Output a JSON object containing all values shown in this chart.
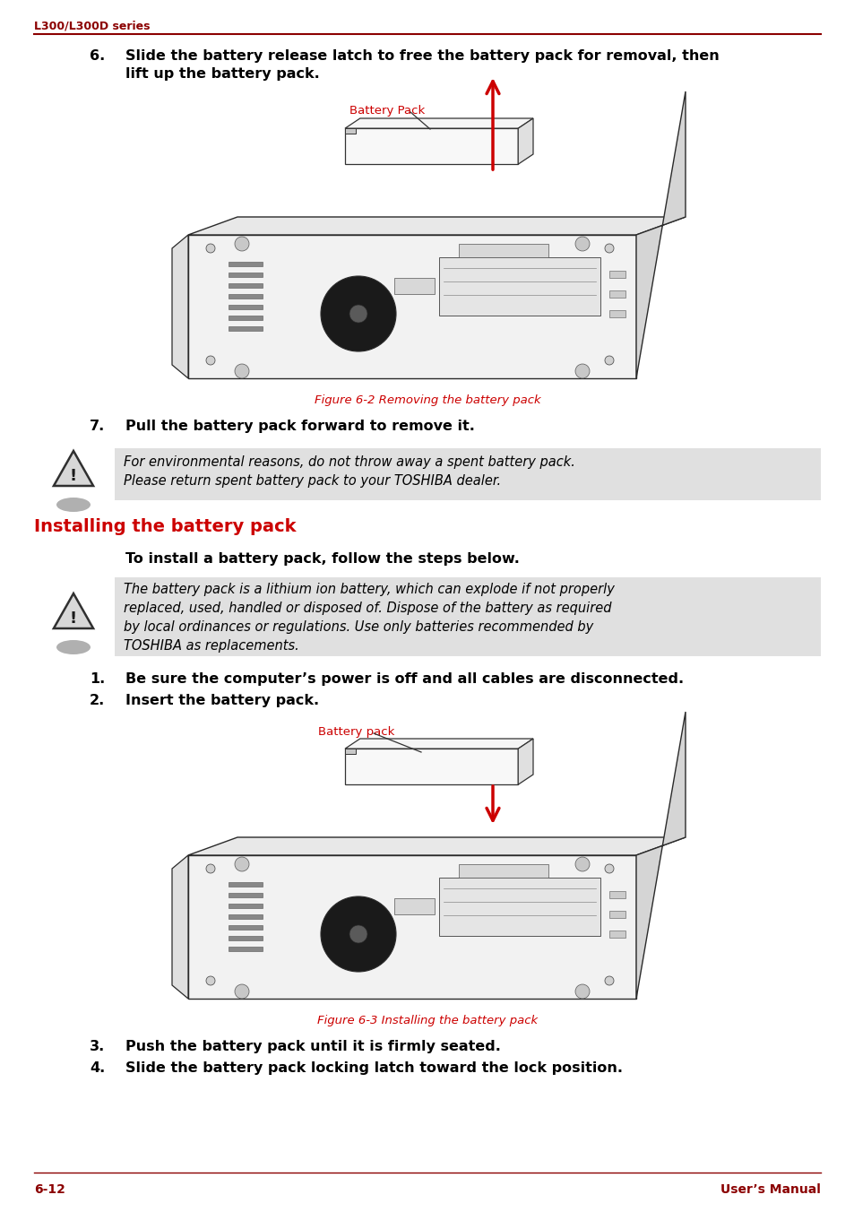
{
  "header_text": "L300/L300D series",
  "header_color": "#8B0000",
  "header_line_color": "#8B0000",
  "footer_left": "6-12",
  "footer_right": "User’s Manual",
  "footer_color": "#8B0000",
  "footer_line_color": "#8B0000",
  "bg_color": "#ffffff",
  "body_text_color": "#000000",
  "red_color": "#cc0000",
  "section_title": "Installing the battery pack",
  "section_title_color": "#cc0000",
  "body_font_size": 11.5,
  "warn_font_size": 10.5,
  "warn_bg": "#e0e0e0",
  "item6_text": "Slide the battery release latch to free the battery pack for removal, then\nlift up the battery pack.",
  "item7_text": "Pull the battery pack forward to remove it.",
  "warn1_text": "For environmental reasons, do not throw away a spent battery pack.\nPlease return spent battery pack to your TOSHIBA dealer.",
  "intro_text": "To install a battery pack, follow the steps below.",
  "warn2_text": "The battery pack is a lithium ion battery, which can explode if not properly\nreplaced, used, handled or disposed of. Dispose of the battery as required\nby local ordinances or regulations. Use only batteries recommended by\nTOSHIBA as replacements.",
  "item1_text": "Be sure the computer’s power is off and all cables are disconnected.",
  "item2_text": "Insert the battery pack.",
  "item3_text": "Push the battery pack until it is firmly seated.",
  "item4_text": "Slide the battery pack locking latch toward the lock position.",
  "fig1_label": "Battery Pack",
  "fig1_caption": "Figure 6-2 Removing the battery pack",
  "fig2_label": "Battery pack",
  "fig2_caption": "Figure 6-3 Installing the battery pack"
}
